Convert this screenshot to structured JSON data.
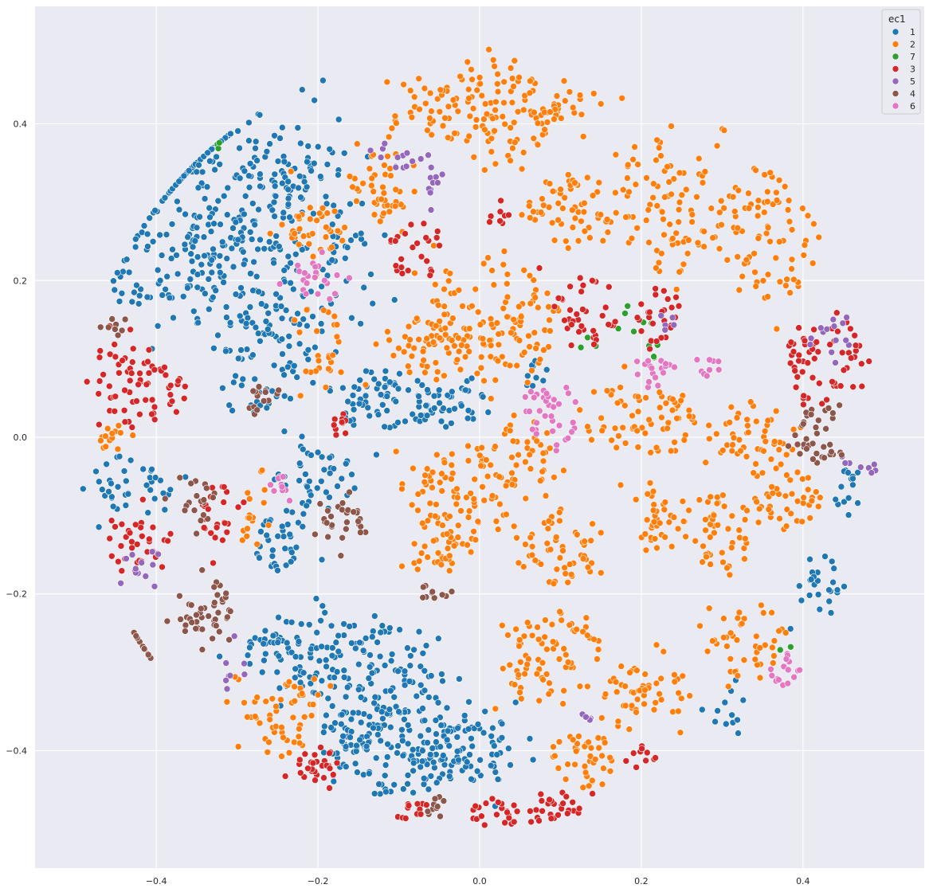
{
  "chart_data": {
    "type": "scatter",
    "title": "",
    "xlabel": "",
    "ylabel": "",
    "xlim": [
      -0.55,
      0.55
    ],
    "ylim": [
      -0.55,
      0.55
    ],
    "xticks": [
      -0.4,
      -0.2,
      0.0,
      0.2,
      0.4
    ],
    "yticks": [
      -0.4,
      -0.2,
      0.0,
      0.2,
      0.4
    ],
    "xtick_labels": [
      "−0.4",
      "−0.2",
      "0.0",
      "0.2",
      "0.4"
    ],
    "ytick_labels": [
      "−0.4",
      "−0.2",
      "0.0",
      "0.2",
      "0.4"
    ],
    "grid": true,
    "background": "#eaeaf2",
    "legend": {
      "title": "ec1",
      "placement": "top-right",
      "entries": [
        {
          "label": "1",
          "color": "#1f77b4"
        },
        {
          "label": "2",
          "color": "#ff7f0e"
        },
        {
          "label": "7",
          "color": "#2ca02c"
        },
        {
          "label": "3",
          "color": "#d62728"
        },
        {
          "label": "5",
          "color": "#9467bd"
        },
        {
          "label": "4",
          "color": "#8c564b"
        },
        {
          "label": "6",
          "color": "#e377c2"
        }
      ]
    },
    "series": [
      {
        "name": "1",
        "color": "#1f77b4",
        "clusters": [
          {
            "cx": -0.31,
            "cy": 0.32,
            "rx": 0.12,
            "ry": 0.1,
            "density": 140
          },
          {
            "cx": -0.22,
            "cy": 0.25,
            "rx": 0.09,
            "ry": 0.14,
            "density": 140
          },
          {
            "cx": -0.36,
            "cy": 0.21,
            "rx": 0.09,
            "ry": 0.07,
            "density": 110
          },
          {
            "cx": -0.27,
            "cy": 0.11,
            "rx": 0.06,
            "ry": 0.08,
            "density": 80
          },
          {
            "cx": -0.38,
            "cy": 0.37,
            "rx": 0.06,
            "ry": 0.04,
            "density": 60
          },
          {
            "cx": -0.12,
            "cy": 0.05,
            "rx": 0.07,
            "ry": 0.04,
            "density": 70
          },
          {
            "cx": -0.04,
            "cy": 0.04,
            "rx": 0.05,
            "ry": 0.03,
            "density": 40
          },
          {
            "cx": -0.2,
            "cy": -0.05,
            "rx": 0.05,
            "ry": 0.04,
            "density": 40
          },
          {
            "cx": -0.24,
            "cy": -0.13,
            "rx": 0.04,
            "ry": 0.05,
            "density": 40
          },
          {
            "cx": -0.42,
            "cy": -0.06,
            "rx": 0.06,
            "ry": 0.04,
            "density": 40
          },
          {
            "cx": -0.22,
            "cy": -0.27,
            "rx": 0.09,
            "ry": 0.05,
            "density": 90
          },
          {
            "cx": -0.13,
            "cy": -0.3,
            "rx": 0.09,
            "ry": 0.06,
            "density": 100
          },
          {
            "cx": -0.1,
            "cy": -0.4,
            "rx": 0.09,
            "ry": 0.06,
            "density": 110
          },
          {
            "cx": -0.02,
            "cy": -0.4,
            "rx": 0.07,
            "ry": 0.05,
            "density": 80
          },
          {
            "cx": -0.16,
            "cy": -0.38,
            "rx": 0.04,
            "ry": 0.05,
            "density": 45
          },
          {
            "cx": 0.42,
            "cy": -0.19,
            "rx": 0.03,
            "ry": 0.04,
            "density": 25
          },
          {
            "cx": 0.46,
            "cy": -0.07,
            "rx": 0.02,
            "ry": 0.03,
            "density": 15
          },
          {
            "cx": 0.07,
            "cy": 0.08,
            "rx": 0.02,
            "ry": 0.02,
            "density": 10
          },
          {
            "cx": 0.3,
            "cy": -0.35,
            "rx": 0.03,
            "ry": 0.03,
            "density": 12
          }
        ]
      },
      {
        "name": "2",
        "color": "#ff7f0e",
        "clusters": [
          {
            "cx": 0.02,
            "cy": 0.42,
            "rx": 0.07,
            "ry": 0.07,
            "density": 90
          },
          {
            "cx": -0.07,
            "cy": 0.42,
            "rx": 0.05,
            "ry": 0.04,
            "density": 35
          },
          {
            "cx": 0.09,
            "cy": 0.43,
            "rx": 0.05,
            "ry": 0.04,
            "density": 35
          },
          {
            "cx": 0.01,
            "cy": 0.15,
            "rx": 0.09,
            "ry": 0.08,
            "density": 130
          },
          {
            "cx": -0.07,
            "cy": 0.12,
            "rx": 0.05,
            "ry": 0.05,
            "density": 50
          },
          {
            "cx": -0.12,
            "cy": 0.32,
            "rx": 0.04,
            "ry": 0.04,
            "density": 45
          },
          {
            "cx": -0.2,
            "cy": 0.27,
            "rx": 0.04,
            "ry": 0.04,
            "density": 40
          },
          {
            "cx": 0.11,
            "cy": 0.29,
            "rx": 0.06,
            "ry": 0.05,
            "density": 60
          },
          {
            "cx": 0.24,
            "cy": 0.3,
            "rx": 0.08,
            "ry": 0.09,
            "density": 100
          },
          {
            "cx": 0.36,
            "cy": 0.26,
            "rx": 0.06,
            "ry": 0.09,
            "density": 80
          },
          {
            "cx": 0.34,
            "cy": 0.0,
            "rx": 0.05,
            "ry": 0.05,
            "density": 55
          },
          {
            "cx": 0.2,
            "cy": 0.02,
            "rx": 0.07,
            "ry": 0.05,
            "density": 70
          },
          {
            "cx": 0.05,
            "cy": -0.02,
            "rx": 0.05,
            "ry": 0.04,
            "density": 45
          },
          {
            "cx": -0.02,
            "cy": -0.08,
            "rx": 0.07,
            "ry": 0.06,
            "density": 90
          },
          {
            "cx": 0.1,
            "cy": -0.14,
            "rx": 0.05,
            "ry": 0.05,
            "density": 55
          },
          {
            "cx": 0.22,
            "cy": -0.11,
            "rx": 0.04,
            "ry": 0.04,
            "density": 40
          },
          {
            "cx": 0.3,
            "cy": -0.12,
            "rx": 0.04,
            "ry": 0.05,
            "density": 45
          },
          {
            "cx": 0.38,
            "cy": -0.08,
            "rx": 0.04,
            "ry": 0.04,
            "density": 40
          },
          {
            "cx": 0.08,
            "cy": -0.27,
            "rx": 0.07,
            "ry": 0.06,
            "density": 80
          },
          {
            "cx": 0.2,
            "cy": -0.33,
            "rx": 0.05,
            "ry": 0.05,
            "density": 55
          },
          {
            "cx": 0.13,
            "cy": -0.41,
            "rx": 0.04,
            "ry": 0.04,
            "density": 40
          },
          {
            "cx": 0.33,
            "cy": -0.26,
            "rx": 0.05,
            "ry": 0.05,
            "density": 45
          },
          {
            "cx": -0.25,
            "cy": -0.36,
            "rx": 0.05,
            "ry": 0.05,
            "density": 55
          },
          {
            "cx": -0.05,
            "cy": -0.15,
            "rx": 0.04,
            "ry": 0.03,
            "density": 30
          },
          {
            "cx": -0.45,
            "cy": 0.0,
            "rx": 0.03,
            "ry": 0.02,
            "density": 15
          },
          {
            "cx": -0.28,
            "cy": -0.1,
            "rx": 0.02,
            "ry": 0.05,
            "density": 18
          },
          {
            "cx": -0.2,
            "cy": 0.12,
            "rx": 0.03,
            "ry": 0.05,
            "density": 25
          }
        ]
      },
      {
        "name": "7",
        "color": "#2ca02c",
        "clusters": [
          {
            "cx": 0.19,
            "cy": 0.15,
            "rx": 0.03,
            "ry": 0.03,
            "density": 6
          },
          {
            "cx": 0.22,
            "cy": 0.1,
            "rx": 0.02,
            "ry": 0.02,
            "density": 4
          },
          {
            "cx": -0.33,
            "cy": 0.38,
            "rx": 0.02,
            "ry": 0.01,
            "density": 3
          },
          {
            "cx": 0.38,
            "cy": -0.27,
            "rx": 0.01,
            "ry": 0.01,
            "density": 2
          },
          {
            "cx": 0.13,
            "cy": 0.12,
            "rx": 0.02,
            "ry": 0.02,
            "density": 3
          }
        ]
      },
      {
        "name": "3",
        "color": "#d62728",
        "clusters": [
          {
            "cx": -0.44,
            "cy": 0.08,
            "rx": 0.04,
            "ry": 0.06,
            "density": 45
          },
          {
            "cx": -0.39,
            "cy": 0.05,
            "rx": 0.03,
            "ry": 0.04,
            "density": 25
          },
          {
            "cx": -0.42,
            "cy": -0.14,
            "rx": 0.04,
            "ry": 0.04,
            "density": 35
          },
          {
            "cx": -0.32,
            "cy": -0.1,
            "rx": 0.03,
            "ry": 0.04,
            "density": 25
          },
          {
            "cx": 0.43,
            "cy": 0.1,
            "rx": 0.05,
            "ry": 0.07,
            "density": 60
          },
          {
            "cx": 0.13,
            "cy": 0.16,
            "rx": 0.04,
            "ry": 0.05,
            "density": 40
          },
          {
            "cx": 0.22,
            "cy": 0.16,
            "rx": 0.03,
            "ry": 0.04,
            "density": 25
          },
          {
            "cx": -0.08,
            "cy": 0.24,
            "rx": 0.04,
            "ry": 0.04,
            "density": 25
          },
          {
            "cx": -0.2,
            "cy": -0.42,
            "rx": 0.025,
            "ry": 0.025,
            "density": 30
          },
          {
            "cx": 0.09,
            "cy": -0.47,
            "rx": 0.03,
            "ry": 0.02,
            "density": 28
          },
          {
            "cx": 0.02,
            "cy": -0.48,
            "rx": 0.03,
            "ry": 0.02,
            "density": 22
          },
          {
            "cx": -0.08,
            "cy": -0.48,
            "rx": 0.02,
            "ry": 0.015,
            "density": 12
          },
          {
            "cx": 0.2,
            "cy": -0.41,
            "rx": 0.02,
            "ry": 0.02,
            "density": 10
          },
          {
            "cx": -0.17,
            "cy": 0.02,
            "rx": 0.015,
            "ry": 0.02,
            "density": 10
          },
          {
            "cx": 0.02,
            "cy": 0.28,
            "rx": 0.02,
            "ry": 0.02,
            "density": 8
          }
        ]
      },
      {
        "name": "5",
        "color": "#9467bd",
        "clusters": [
          {
            "cx": -0.1,
            "cy": 0.36,
            "rx": 0.03,
            "ry": 0.03,
            "density": 14
          },
          {
            "cx": -0.06,
            "cy": 0.31,
            "rx": 0.02,
            "ry": 0.03,
            "density": 10
          },
          {
            "cx": 0.43,
            "cy": 0.13,
            "rx": 0.03,
            "ry": 0.03,
            "density": 14
          },
          {
            "cx": 0.47,
            "cy": -0.04,
            "rx": 0.02,
            "ry": 0.02,
            "density": 8
          },
          {
            "cx": -0.41,
            "cy": -0.17,
            "rx": 0.03,
            "ry": 0.03,
            "density": 12
          },
          {
            "cx": -0.3,
            "cy": -0.3,
            "rx": 0.02,
            "ry": 0.03,
            "density": 8
          },
          {
            "cx": 0.23,
            "cy": 0.14,
            "rx": 0.02,
            "ry": 0.02,
            "density": 5
          },
          {
            "cx": 0.14,
            "cy": -0.36,
            "rx": 0.02,
            "ry": 0.01,
            "density": 5
          }
        ]
      },
      {
        "name": "4",
        "color": "#8c564b",
        "clusters": [
          {
            "cx": -0.34,
            "cy": -0.22,
            "rx": 0.035,
            "ry": 0.04,
            "density": 45
          },
          {
            "cx": -0.17,
            "cy": -0.11,
            "rx": 0.025,
            "ry": 0.03,
            "density": 30
          },
          {
            "cx": 0.42,
            "cy": 0.0,
            "rx": 0.035,
            "ry": 0.04,
            "density": 40
          },
          {
            "cx": -0.27,
            "cy": 0.05,
            "rx": 0.025,
            "ry": 0.02,
            "density": 15
          },
          {
            "cx": -0.35,
            "cy": -0.08,
            "rx": 0.025,
            "ry": 0.03,
            "density": 20
          },
          {
            "cx": -0.43,
            "cy": -0.27,
            "rx": 0.025,
            "ry": 0.03,
            "density": 16
          },
          {
            "cx": -0.06,
            "cy": -0.2,
            "rx": 0.02,
            "ry": 0.015,
            "density": 10
          },
          {
            "cx": -0.05,
            "cy": -0.47,
            "rx": 0.02,
            "ry": 0.015,
            "density": 10
          },
          {
            "cx": -0.45,
            "cy": 0.14,
            "rx": 0.02,
            "ry": 0.02,
            "density": 8
          }
        ]
      },
      {
        "name": "6",
        "color": "#e377c2",
        "clusters": [
          {
            "cx": -0.21,
            "cy": 0.2,
            "rx": 0.025,
            "ry": 0.025,
            "density": 22
          },
          {
            "cx": 0.09,
            "cy": 0.03,
            "rx": 0.04,
            "ry": 0.04,
            "density": 35
          },
          {
            "cx": 0.22,
            "cy": 0.08,
            "rx": 0.03,
            "ry": 0.02,
            "density": 18
          },
          {
            "cx": 0.28,
            "cy": 0.09,
            "rx": 0.02,
            "ry": 0.015,
            "density": 10
          },
          {
            "cx": 0.38,
            "cy": -0.3,
            "rx": 0.02,
            "ry": 0.025,
            "density": 18
          },
          {
            "cx": -0.25,
            "cy": -0.06,
            "rx": 0.015,
            "ry": 0.02,
            "density": 10
          }
        ]
      }
    ]
  }
}
